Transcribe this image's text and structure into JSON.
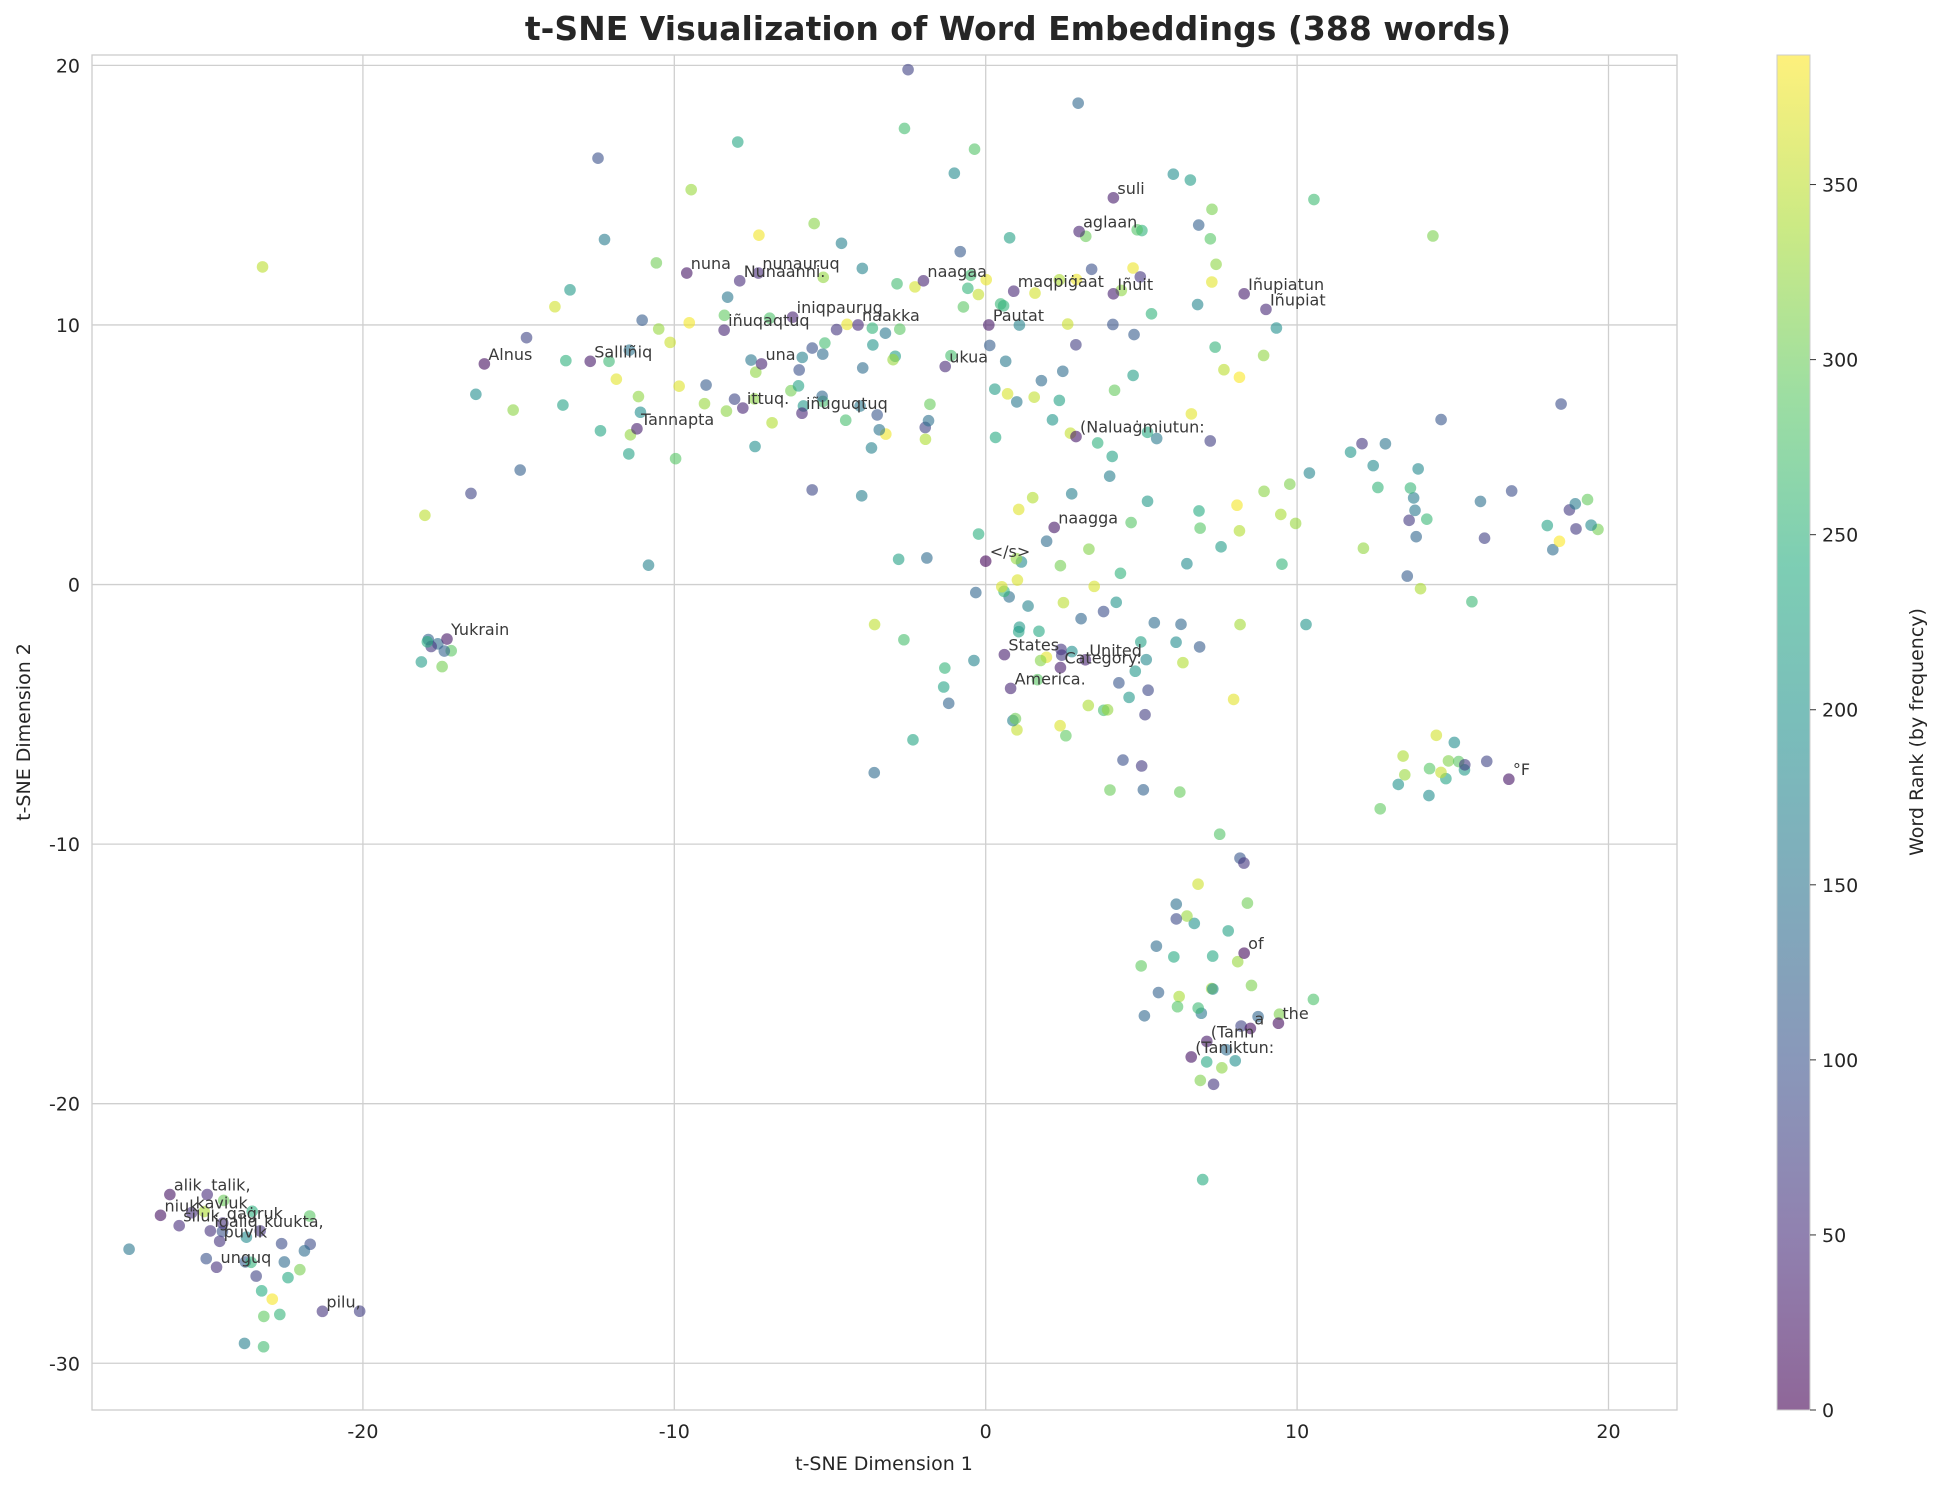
{
  "chart_data": {
    "type": "scatter",
    "title": "t-SNE Visualization of Word Embeddings (388 words)",
    "xlabel": "t-SNE Dimension 1",
    "ylabel": "t-SNE Dimension 2",
    "xlim": [
      -28.7,
      22.2
    ],
    "ylim": [
      -31.8,
      20.4
    ],
    "xticks": [
      -20,
      -10,
      0,
      10,
      20
    ],
    "yticks": [
      -30,
      -20,
      -10,
      0,
      10,
      20
    ],
    "grid": true,
    "colorbar": {
      "label": "Word Rank (by frequency)",
      "range": [
        0,
        387
      ],
      "ticks": [
        0,
        50,
        100,
        150,
        200,
        250,
        300,
        350
      ],
      "colormap": "viridis",
      "alpha": 0.6
    },
    "labeled_points": [
      {
        "x": 0.0,
        "y": 0.9,
        "rank": 5,
        "label": "</s>"
      },
      {
        "x": 8.3,
        "y": -14.2,
        "rank": 10,
        "label": "of"
      },
      {
        "x": 9.4,
        "y": -16.9,
        "rank": 12,
        "label": "the"
      },
      {
        "x": 8.5,
        "y": -17.1,
        "rank": 15,
        "label": "a"
      },
      {
        "x": 16.8,
        "y": -7.5,
        "rank": 20,
        "label": "°F"
      },
      {
        "x": 7.1,
        "y": -17.6,
        "rank": 25,
        "label": "(Tann"
      },
      {
        "x": 6.6,
        "y": -18.2,
        "rank": 18,
        "label": "(Taniktun:"
      },
      {
        "x": 0.6,
        "y": -2.7,
        "rank": 30,
        "label": "States"
      },
      {
        "x": 2.4,
        "y": -3.2,
        "rank": 28,
        "label": "Category:"
      },
      {
        "x": 3.2,
        "y": -2.9,
        "rank": 35,
        "label": "United"
      },
      {
        "x": 0.8,
        "y": -4.0,
        "rank": 40,
        "label": "America."
      },
      {
        "x": 2.2,
        "y": 2.2,
        "rank": 22,
        "label": "naagga"
      },
      {
        "x": 2.9,
        "y": 5.7,
        "rank": 24,
        "label": "(Naluaġmiutun:"
      },
      {
        "x": 0.1,
        "y": 10.0,
        "rank": 26,
        "label": "Pautat"
      },
      {
        "x": -1.3,
        "y": 8.4,
        "rank": 45,
        "label": "ukua"
      },
      {
        "x": -2.0,
        "y": 11.7,
        "rank": 38,
        "label": "naagaa"
      },
      {
        "x": 0.9,
        "y": 11.3,
        "rank": 42,
        "label": "maqpiġaat"
      },
      {
        "x": 4.1,
        "y": 11.2,
        "rank": 33,
        "label": "Iñuit"
      },
      {
        "x": 3.0,
        "y": 13.6,
        "rank": 36,
        "label": "aglaan"
      },
      {
        "x": 4.1,
        "y": 14.9,
        "rank": 29,
        "label": "suli"
      },
      {
        "x": 8.3,
        "y": 11.2,
        "rank": 31,
        "label": "Iñupiatun"
      },
      {
        "x": 9.0,
        "y": 10.6,
        "rank": 44,
        "label": "Iñupiat"
      },
      {
        "x": -16.1,
        "y": 8.5,
        "rank": 14,
        "label": "Alnus"
      },
      {
        "x": -12.7,
        "y": 8.6,
        "rank": 27,
        "label": "Salliñiq"
      },
      {
        "x": -11.2,
        "y": 6.0,
        "rank": 32,
        "label": "Tannapta"
      },
      {
        "x": -7.2,
        "y": 8.5,
        "rank": 37,
        "label": "una"
      },
      {
        "x": -7.8,
        "y": 6.8,
        "rank": 41,
        "label": "ittuq."
      },
      {
        "x": -5.9,
        "y": 6.6,
        "rank": 43,
        "label": "iñuguqtuq"
      },
      {
        "x": -8.4,
        "y": 9.8,
        "rank": 39,
        "label": "iñuqaqtuq"
      },
      {
        "x": -6.2,
        "y": 10.3,
        "rank": 34,
        "label": "iniqpauruq"
      },
      {
        "x": -4.1,
        "y": 10.0,
        "rank": 46,
        "label": "naakka"
      },
      {
        "x": -9.6,
        "y": 12.0,
        "rank": 21,
        "label": "nuna"
      },
      {
        "x": -7.9,
        "y": 11.7,
        "rank": 47,
        "label": "Nunaanni."
      },
      {
        "x": -7.3,
        "y": 12.0,
        "rank": 48,
        "label": "nunauruq"
      },
      {
        "x": -17.3,
        "y": -2.1,
        "rank": 23,
        "label": "Yukrain"
      },
      {
        "x": -26.2,
        "y": -23.5,
        "rank": 19,
        "label": "alik"
      },
      {
        "x": -25.0,
        "y": -23.5,
        "rank": 49,
        "label": "talik,"
      },
      {
        "x": -25.5,
        "y": -24.2,
        "rank": 52,
        "label": "kaviuk"
      },
      {
        "x": -26.5,
        "y": -24.3,
        "rank": 17,
        "label": "niuk"
      },
      {
        "x": -25.9,
        "y": -24.7,
        "rank": 50,
        "label": "siluk"
      },
      {
        "x": -24.5,
        "y": -24.6,
        "rank": 53,
        "label": "qaġruk"
      },
      {
        "x": -24.9,
        "y": -24.9,
        "rank": 55,
        "label": "igaliq"
      },
      {
        "x": -23.3,
        "y": -24.9,
        "rank": 58,
        "label": "kuukta,"
      },
      {
        "x": -24.6,
        "y": -25.3,
        "rank": 56,
        "label": "puvik"
      },
      {
        "x": -24.7,
        "y": -26.3,
        "rank": 54,
        "label": "unguq"
      },
      {
        "x": -21.3,
        "y": -28.0,
        "rank": 57,
        "label": "pilu,"
      }
    ],
    "clusters": [
      {
        "name": "upper-left",
        "cx": -7.5,
        "cy": 7.8,
        "sx": 4.7,
        "sy": 3.0,
        "n": 80,
        "seed": 101
      },
      {
        "name": "top-center",
        "cx": 2.5,
        "cy": 10.5,
        "sx": 4.5,
        "sy": 3.3,
        "n": 70,
        "seed": 202
      },
      {
        "name": "center",
        "cx": 3.2,
        "cy": -2.5,
        "sx": 3.3,
        "sy": 3.0,
        "n": 70,
        "seed": 303
      },
      {
        "name": "right-arm",
        "cx": 12.0,
        "cy": 2.2,
        "sx": 2.9,
        "sy": 1.9,
        "n": 30,
        "seed": 404
      },
      {
        "name": "far-right",
        "cx": 18.7,
        "cy": 2.4,
        "sx": 0.9,
        "sy": 0.8,
        "n": 10,
        "seed": 505
      },
      {
        "name": "right-low",
        "cx": 14.8,
        "cy": -7.0,
        "sx": 1.8,
        "sy": 0.9,
        "n": 15,
        "seed": 606
      },
      {
        "name": "lower-tail",
        "cx": 7.3,
        "cy": -15.5,
        "sx": 1.0,
        "sy": 2.8,
        "n": 35,
        "seed": 707
      },
      {
        "name": "yukrain",
        "cx": -17.8,
        "cy": -2.6,
        "sx": 0.5,
        "sy": 0.4,
        "n": 8,
        "seed": 808
      },
      {
        "name": "bottom-left",
        "cx": -23.5,
        "cy": -26.3,
        "sx": 1.4,
        "sy": 1.4,
        "n": 24,
        "seed": 909
      }
    ]
  }
}
